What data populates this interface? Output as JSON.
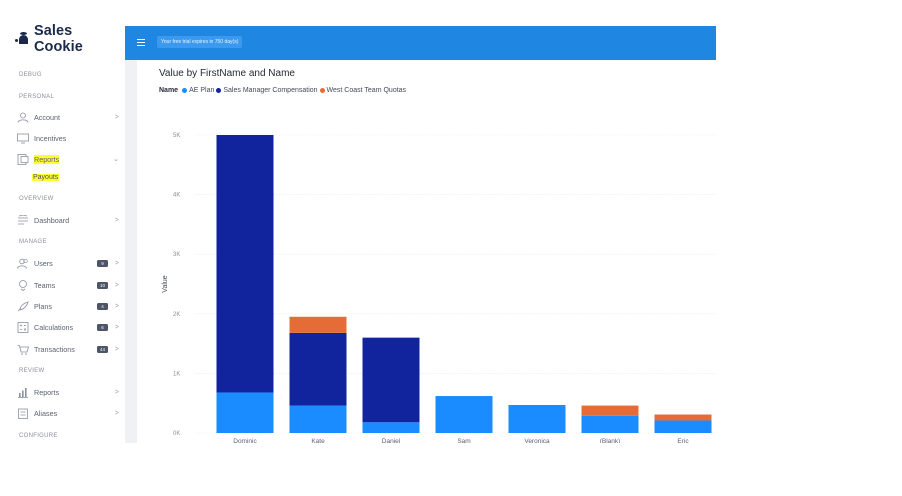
{
  "app": {
    "logo_text": "Sales Cookie"
  },
  "topbar": {
    "trial_text": "Your free trial expires in 750 day(s)"
  },
  "sidebar": {
    "sections": {
      "debug": "DEBUG",
      "personal": "PERSONAL",
      "overview": "OVERVIEW",
      "manage": "MANAGE",
      "review": "REVIEW",
      "configure": "CONFIGURE"
    },
    "items": {
      "account": {
        "label": "Account",
        "icon": "user-icon"
      },
      "incentives": {
        "label": "Incentives",
        "icon": "monitor-icon"
      },
      "reports_personal": {
        "label": "Reports",
        "icon": "document-icon",
        "highlighted": true
      },
      "payouts": {
        "label": "Payouts",
        "highlighted": true
      },
      "dashboard": {
        "label": "Dashboard",
        "icon": "dashboard-icon"
      },
      "users": {
        "label": "Users",
        "icon": "users-icon",
        "badge": "9"
      },
      "teams": {
        "label": "Teams",
        "icon": "team-icon",
        "badge": "10"
      },
      "plans": {
        "label": "Plans",
        "icon": "plans-icon",
        "badge": "4"
      },
      "calculations": {
        "label": "Calculations",
        "icon": "calculator-icon",
        "badge": "6"
      },
      "transactions": {
        "label": "Transactions",
        "icon": "cart-icon",
        "badge": "44"
      },
      "reports_review": {
        "label": "Reports",
        "icon": "bar-chart-icon"
      },
      "aliases": {
        "label": "Aliases",
        "icon": "alias-icon"
      }
    }
  },
  "colors": {
    "topbar": "#1f86e2",
    "highlight": "#ffff33",
    "ae_plan": "#1a8cff",
    "sales_manager": "#12239e",
    "west_coast": "#e66c37"
  },
  "chart_data": {
    "type": "bar",
    "stacked": true,
    "title": "Value by FirstName and Name",
    "legend_title": "Name",
    "ylabel": "Value",
    "xlabel": "",
    "ylim": [
      0,
      5000
    ],
    "yticks": [
      {
        "value": 0,
        "label": "0K"
      },
      {
        "value": 1000,
        "label": "1K"
      },
      {
        "value": 2000,
        "label": "2K"
      },
      {
        "value": 3000,
        "label": "3K"
      },
      {
        "value": 4000,
        "label": "4K"
      },
      {
        "value": 5000,
        "label": "5K"
      }
    ],
    "grid": true,
    "legend_position": "top-left",
    "categories": [
      "Dominic",
      "Kate",
      "Daniel",
      "Sam",
      "Veronica",
      "(Blank)",
      "Eric"
    ],
    "series": [
      {
        "name": "AE Plan",
        "color": "#1a8cff",
        "values": [
          680,
          460,
          180,
          620,
          470,
          290,
          210
        ]
      },
      {
        "name": "Sales Manager Compensation",
        "color": "#12239e",
        "values": [
          4320,
          1220,
          1420,
          0,
          0,
          0,
          0
        ]
      },
      {
        "name": "West Coast Team Quotas",
        "color": "#e66c37",
        "values": [
          0,
          270,
          0,
          0,
          0,
          170,
          100
        ]
      }
    ]
  }
}
